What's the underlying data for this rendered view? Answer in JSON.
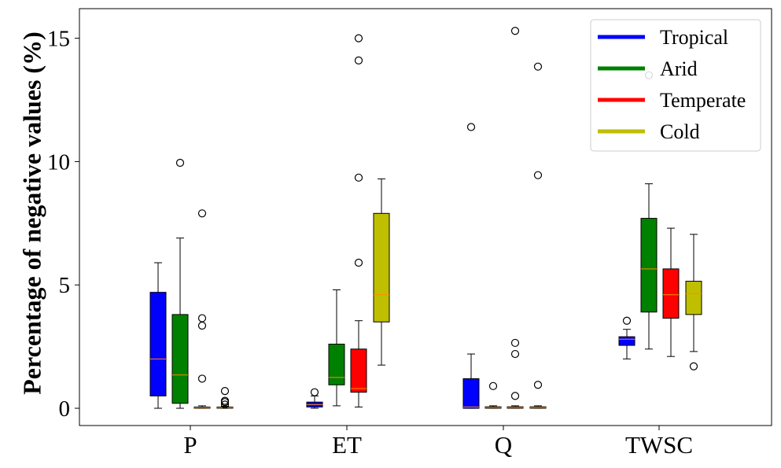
{
  "chart_data": {
    "type": "box",
    "title": "",
    "xlabel": "",
    "ylabel": "Percentage of negative values (%)",
    "categories": [
      "P",
      "ET",
      "Q",
      "TWSC"
    ],
    "yticks": [
      0,
      5,
      10,
      15
    ],
    "ylim": [
      -0.7,
      16.2
    ],
    "grid": false,
    "legend_position": "top-right",
    "median_color": "#ff8c00",
    "series": [
      {
        "name": "Tropical",
        "color": "#0000ff",
        "boxes": [
          {
            "min": 0.0,
            "q1": 0.5,
            "median": 2.0,
            "q3": 4.7,
            "max": 5.9,
            "outliers": []
          },
          {
            "min": 0.0,
            "q1": 0.05,
            "median": 0.15,
            "q3": 0.25,
            "max": 0.5,
            "outliers": [
              0.65
            ]
          },
          {
            "min": 0.0,
            "q1": 0.0,
            "median": 0.05,
            "q3": 1.2,
            "max": 2.2,
            "outliers": [
              11.4
            ]
          },
          {
            "min": 2.0,
            "q1": 2.55,
            "median": 2.8,
            "q3": 2.9,
            "max": 3.2,
            "outliers": [
              3.55
            ]
          }
        ]
      },
      {
        "name": "Arid",
        "color": "#008000",
        "boxes": [
          {
            "min": 0.0,
            "q1": 0.2,
            "median": 1.35,
            "q3": 3.8,
            "max": 6.9,
            "outliers": [
              9.95
            ]
          },
          {
            "min": 0.1,
            "q1": 0.95,
            "median": 1.25,
            "q3": 2.6,
            "max": 4.8,
            "outliers": []
          },
          {
            "min": 0.0,
            "q1": 0.0,
            "median": 0.03,
            "q3": 0.06,
            "max": 0.1,
            "outliers": [
              0.9
            ]
          },
          {
            "min": 2.4,
            "q1": 3.9,
            "median": 5.65,
            "q3": 7.7,
            "max": 9.1,
            "outliers": [
              13.5
            ]
          }
        ]
      },
      {
        "name": "Temperate",
        "color": "#ff0000",
        "boxes": [
          {
            "min": 0.0,
            "q1": 0.0,
            "median": 0.02,
            "q3": 0.05,
            "max": 0.1,
            "outliers": [
              1.2,
              3.35,
              3.65,
              7.9
            ]
          },
          {
            "min": 0.05,
            "q1": 0.65,
            "median": 0.8,
            "q3": 2.4,
            "max": 3.55,
            "outliers": [
              5.9,
              9.35,
              14.1,
              15.0
            ]
          },
          {
            "min": 0.0,
            "q1": 0.0,
            "median": 0.03,
            "q3": 0.06,
            "max": 0.1,
            "outliers": [
              0.5,
              2.2,
              2.65,
              15.3
            ]
          },
          {
            "min": 2.1,
            "q1": 3.65,
            "median": 4.6,
            "q3": 5.65,
            "max": 7.3,
            "outliers": []
          }
        ]
      },
      {
        "name": "Cold",
        "color": "#bfbf00",
        "boxes": [
          {
            "min": 0.0,
            "q1": 0.0,
            "median": 0.02,
            "q3": 0.05,
            "max": 0.08,
            "outliers": [
              0.15,
              0.25,
              0.3,
              0.7
            ]
          },
          {
            "min": 1.75,
            "q1": 3.5,
            "median": 4.6,
            "q3": 7.9,
            "max": 9.3,
            "outliers": []
          },
          {
            "min": 0.0,
            "q1": 0.0,
            "median": 0.03,
            "q3": 0.06,
            "max": 0.1,
            "outliers": [
              0.95,
              9.45,
              13.85
            ]
          },
          {
            "min": 2.3,
            "q1": 3.8,
            "median": 4.65,
            "q3": 5.15,
            "max": 7.05,
            "outliers": [
              1.7
            ]
          }
        ]
      }
    ]
  }
}
